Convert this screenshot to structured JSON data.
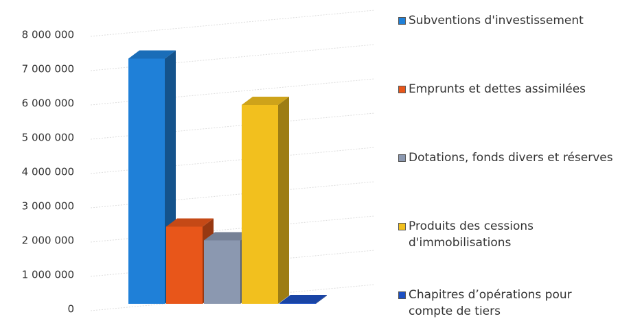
{
  "chart_data": {
    "type": "bar3d",
    "ylim": [
      0,
      8000000
    ],
    "yticks": [
      0,
      {
        "value": 1000000,
        "label": "1 000 000"
      },
      {
        "value": 2000000,
        "label": "2 000 000"
      },
      {
        "value": 3000000,
        "label": "3 000 000"
      },
      {
        "value": 4000000,
        "label": "4 000 000"
      },
      {
        "value": 5000000,
        "label": "5 000 000"
      },
      {
        "value": 6000000,
        "label": "6 000 000"
      },
      {
        "value": 7000000,
        "label": "7 000 000"
      },
      {
        "value": 8000000,
        "label": "8 000 000"
      }
    ],
    "grid": true,
    "legend": "right",
    "series": [
      {
        "name": "Subventions d'investissement",
        "color": "#1f80d8",
        "values": [
          7150000
        ]
      },
      {
        "name": "Emprunts et dettes assimilées",
        "color": "#e8561a",
        "values": [
          2250000
        ]
      },
      {
        "name": "Dotations, fonds divers et réserves",
        "color": "#8b98b0",
        "values": [
          1850000
        ]
      },
      {
        "name": "Produits des cessions\nd'immobilisations",
        "color": "#f2c01e",
        "values": [
          5800000
        ]
      },
      {
        "name": "Chapitres d’opérations pour\ncompte de tiers",
        "color": "#1d50c2",
        "values": [
          20000
        ]
      }
    ]
  }
}
